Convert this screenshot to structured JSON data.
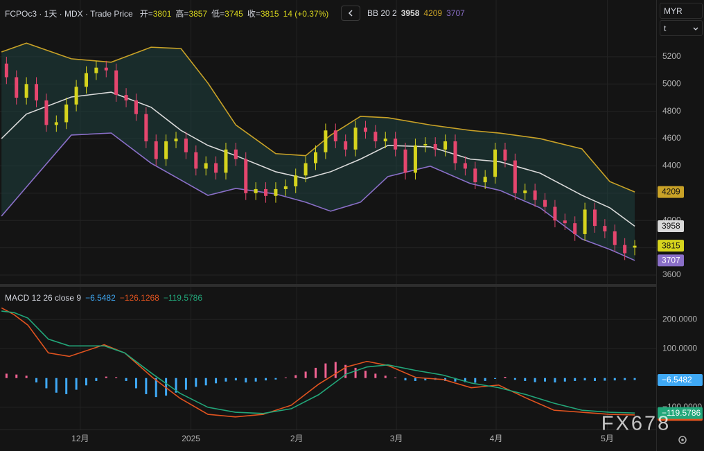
{
  "header": {
    "symbol": "FCPOc3 · 1天 · MDX · Trade Price",
    "open_label": "开=",
    "high_label": "高=",
    "low_label": "低=",
    "close_label": "收=",
    "change": "14 (+0.37%)"
  },
  "toolbar": {
    "currency": "MYR",
    "unit": "t"
  },
  "watermark": "FX678",
  "chart_data": [
    {
      "type": "candlestick",
      "indicator": "BB 20 2",
      "up_color": "#d6d41d",
      "down_color": "#e5466e",
      "xlim": [
        -0.3,
        131.3
      ],
      "xticks": [
        {
          "value": 15.8,
          "label": "12月"
        },
        {
          "value": 38,
          "label": "2025"
        },
        {
          "value": 59.2,
          "label": "2月"
        },
        {
          "value": 79.2,
          "label": "3月"
        },
        {
          "value": 99.2,
          "label": "4月"
        },
        {
          "value": 121.5,
          "label": "5月"
        }
      ],
      "ylim": [
        3534,
        5616
      ],
      "yticks": [
        3600,
        3800,
        4000,
        4200,
        4400,
        4600,
        4800,
        5000,
        5200
      ],
      "grid": true,
      "x": [
        1,
        3,
        5,
        7,
        9,
        11,
        13,
        15,
        17,
        19,
        21,
        23,
        25,
        27,
        29,
        31,
        33,
        35,
        37,
        39,
        41,
        43,
        45,
        47,
        49,
        51,
        53,
        55,
        57,
        59,
        61,
        63,
        65,
        67,
        69,
        71,
        73,
        75,
        77,
        79,
        81,
        83,
        85,
        87,
        89,
        91,
        93,
        95,
        97,
        99,
        101,
        103,
        105,
        107,
        109,
        111,
        113,
        115,
        117,
        119,
        121,
        123,
        125,
        127
      ],
      "open": [
        5150,
        5050,
        4900,
        5000,
        4880,
        4700,
        4720,
        4850,
        4980,
        5080,
        5120,
        5100,
        4920,
        4880,
        4780,
        4580,
        4450,
        4580,
        4600,
        4500,
        4380,
        4420,
        4350,
        4520,
        4450,
        4200,
        4230,
        4180,
        4230,
        4250,
        4330,
        4420,
        4500,
        4660,
        4580,
        4520,
        4680,
        4650,
        4580,
        4600,
        4520,
        4350,
        4550,
        4560,
        4520,
        4580,
        4420,
        4380,
        4280,
        4320,
        4520,
        4440,
        4200,
        4220,
        4150,
        4100,
        4000,
        3980,
        3900,
        4080,
        3960,
        3920,
        3820,
        3801
      ],
      "high": [
        5200,
        5100,
        5050,
        5050,
        4930,
        4770,
        4900,
        5030,
        5130,
        5170,
        5170,
        5150,
        4970,
        4930,
        4830,
        4630,
        4630,
        4650,
        4650,
        4550,
        4470,
        4470,
        4570,
        4570,
        4500,
        4280,
        4280,
        4280,
        4300,
        4380,
        4470,
        4550,
        4710,
        4710,
        4630,
        4730,
        4730,
        4700,
        4650,
        4650,
        4570,
        4600,
        4610,
        4610,
        4630,
        4630,
        4470,
        4430,
        4370,
        4570,
        4570,
        4490,
        4270,
        4270,
        4200,
        4150,
        4050,
        4030,
        4130,
        4130,
        4010,
        3970,
        3870,
        3857
      ],
      "low": [
        5000,
        4850,
        4850,
        4830,
        4650,
        4650,
        4670,
        4800,
        4930,
        5030,
        5050,
        4870,
        4830,
        4730,
        4530,
        4400,
        4400,
        4530,
        4450,
        4330,
        4330,
        4300,
        4300,
        4400,
        4150,
        4150,
        4130,
        4130,
        4180,
        4200,
        4280,
        4370,
        4450,
        4530,
        4470,
        4470,
        4600,
        4530,
        4530,
        4470,
        4300,
        4300,
        4500,
        4470,
        4470,
        4370,
        4330,
        4230,
        4230,
        4270,
        4390,
        4150,
        4150,
        4100,
        4050,
        3950,
        3930,
        3850,
        3850,
        3910,
        3870,
        3770,
        3710,
        3745
      ],
      "close": [
        5050,
        4900,
        5000,
        4880,
        4700,
        4720,
        4850,
        4980,
        5080,
        5120,
        5100,
        4920,
        4880,
        4780,
        4580,
        4450,
        4580,
        4600,
        4500,
        4380,
        4420,
        4350,
        4520,
        4450,
        4200,
        4230,
        4180,
        4230,
        4250,
        4330,
        4420,
        4500,
        4660,
        4580,
        4520,
        4680,
        4650,
        4580,
        4600,
        4520,
        4350,
        4550,
        4560,
        4520,
        4580,
        4420,
        4380,
        4280,
        4320,
        4520,
        4440,
        4200,
        4220,
        4150,
        4100,
        4000,
        3980,
        3900,
        4080,
        3960,
        3920,
        3820,
        3760,
        3815
      ],
      "series": [
        {
          "color": "#d9d9d9",
          "x": [
            0,
            5,
            14,
            22,
            30,
            36,
            41.4,
            47,
            55,
            61,
            66,
            72,
            77.5,
            86,
            94,
            100,
            108,
            116.4,
            122,
            127
          ],
          "values": [
            4600,
            4780,
            4905,
            4940,
            4830,
            4660,
            4550,
            4475,
            4357,
            4307,
            4357,
            4450,
            4550,
            4540,
            4450,
            4430,
            4347,
            4185,
            4093,
            3958
          ]
        },
        {
          "color": "#c9a227",
          "x": [
            0,
            5,
            14,
            22,
            30,
            36,
            41.4,
            47,
            55,
            61,
            66,
            72,
            77.5,
            86,
            94,
            100,
            108,
            116.4,
            122,
            127
          ],
          "values": [
            5235,
            5300,
            5185,
            5160,
            5270,
            5260,
            5007,
            4700,
            4490,
            4475,
            4625,
            4763,
            4753,
            4700,
            4660,
            4640,
            4600,
            4525,
            4285,
            4209
          ]
        },
        {
          "color": "#8a6fc8",
          "x": [
            0,
            5,
            14,
            22,
            30,
            36,
            41.4,
            47,
            55,
            61,
            66,
            72,
            77.5,
            86,
            94,
            100,
            108,
            116.4,
            122,
            127
          ],
          "values": [
            4032,
            4245,
            4626,
            4641,
            4420,
            4296,
            4184,
            4235,
            4194,
            4134,
            4068,
            4134,
            4322,
            4398,
            4271,
            4220,
            4093,
            3864,
            3788,
            3707
          ]
        }
      ]
    },
    {
      "type": "macd",
      "title": "MACD 12 26 close 9",
      "ylim": [
        -176,
        312
      ],
      "yticks": [
        {
          "value": -100,
          "label": "−100.0000"
        },
        {
          "value": 100,
          "label": "100.0000"
        },
        {
          "value": 200,
          "label": "200.0000"
        }
      ],
      "grid": true,
      "series": [
        {
          "type": "histogram",
          "up_color": "#f06292",
          "down_color": "#3fa9f5",
          "x": [
            1,
            3,
            5,
            7,
            9,
            11,
            13,
            15,
            17,
            19,
            21,
            23,
            25,
            27,
            29,
            31,
            33,
            35,
            37,
            39,
            41,
            43,
            45,
            47,
            49,
            51,
            53,
            55,
            57,
            59,
            61,
            63,
            65,
            67,
            69,
            71,
            73,
            75,
            77,
            79,
            81,
            83,
            85,
            87,
            89,
            91,
            93,
            95,
            97,
            99,
            101,
            103,
            105,
            107,
            109,
            111,
            113,
            115,
            117,
            119,
            121,
            123,
            125,
            127
          ],
          "values": [
            15,
            12,
            8,
            -15,
            -35,
            -50,
            -55,
            -40,
            -25,
            -10,
            5,
            3,
            -10,
            -35,
            -55,
            -65,
            -60,
            -50,
            -40,
            -30,
            -25,
            -18,
            -12,
            -8,
            -15,
            -12,
            -8,
            -5,
            2,
            10,
            22,
            35,
            50,
            55,
            45,
            35,
            25,
            15,
            8,
            2,
            -8,
            -10,
            -8,
            -6,
            -10,
            -12,
            -14,
            -16,
            -10,
            -3,
            4,
            -6,
            -10,
            -14,
            -12,
            -15,
            -12,
            -10,
            -8,
            -10,
            -9,
            -8,
            -7,
            -6.5482
          ],
          "value_labels": {
            "63": "−6.5482"
          }
        },
        {
          "type": "line",
          "color": "#e0531f",
          "x": [
            0,
            2.5,
            5.3,
            9.4,
            13.6,
            20.6,
            24.7,
            30.3,
            35.8,
            41.4,
            46.9,
            52.5,
            58.1,
            63.6,
            69.2,
            73.3,
            77.5,
            83.1,
            88.6,
            94.2,
            99.7,
            105.3,
            110.8,
            116.4,
            121.9,
            127
          ],
          "values": [
            240,
            217,
            181,
            86,
            74,
            114,
            86,
            2,
            -69,
            -124,
            -133,
            -124,
            -93,
            -21,
            38,
            57,
            43,
            2,
            -5,
            -33,
            -24,
            -69,
            -110,
            -117,
            -124,
            -126.1268
          ],
          "value_labels": {
            "25": "−126.1268"
          }
        },
        {
          "type": "line",
          "color": "#22a77a",
          "x": [
            0,
            2.5,
            5.3,
            9.4,
            13.6,
            20.6,
            24.7,
            30.3,
            35.8,
            41.4,
            46.9,
            52.5,
            58.1,
            63.6,
            69.2,
            73.3,
            77.5,
            83.1,
            88.6,
            94.2,
            99.7,
            105.3,
            110.8,
            116.4,
            121.9,
            127
          ],
          "values": [
            229,
            224,
            205,
            133,
            110,
            110,
            86,
            14,
            -52,
            -100,
            -117,
            -121,
            -105,
            -57,
            14,
            38,
            45,
            26,
            10,
            -17,
            -33,
            -57,
            -86,
            -110,
            -117,
            -119.5786
          ],
          "value_labels": {
            "25": "−119.5786"
          }
        }
      ]
    }
  ]
}
